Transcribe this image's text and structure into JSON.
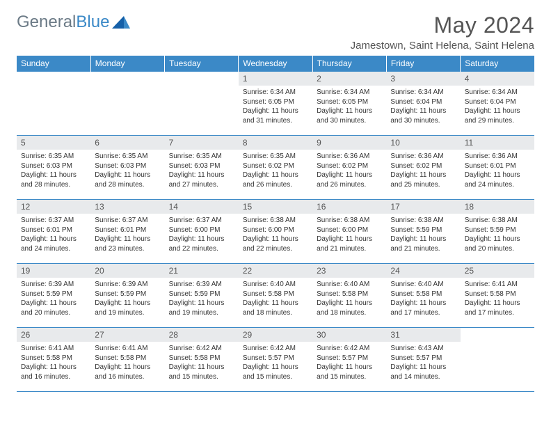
{
  "brand": {
    "part1": "General",
    "part2": "Blue"
  },
  "title": "May 2024",
  "location": "Jamestown, Saint Helena, Saint Helena",
  "colors": {
    "header_bg": "#3b89c7",
    "header_text": "#ffffff",
    "daynum_bg": "#e8eaec",
    "border": "#3b89c7",
    "text": "#333333",
    "logo_gray": "#6b7a86"
  },
  "weekdays": [
    "Sunday",
    "Monday",
    "Tuesday",
    "Wednesday",
    "Thursday",
    "Friday",
    "Saturday"
  ],
  "weeks": [
    [
      {
        "day": "",
        "sunrise": "",
        "sunset": "",
        "daylight": ""
      },
      {
        "day": "",
        "sunrise": "",
        "sunset": "",
        "daylight": ""
      },
      {
        "day": "",
        "sunrise": "",
        "sunset": "",
        "daylight": ""
      },
      {
        "day": "1",
        "sunrise": "Sunrise: 6:34 AM",
        "sunset": "Sunset: 6:05 PM",
        "daylight": "Daylight: 11 hours and 31 minutes."
      },
      {
        "day": "2",
        "sunrise": "Sunrise: 6:34 AM",
        "sunset": "Sunset: 6:05 PM",
        "daylight": "Daylight: 11 hours and 30 minutes."
      },
      {
        "day": "3",
        "sunrise": "Sunrise: 6:34 AM",
        "sunset": "Sunset: 6:04 PM",
        "daylight": "Daylight: 11 hours and 30 minutes."
      },
      {
        "day": "4",
        "sunrise": "Sunrise: 6:34 AM",
        "sunset": "Sunset: 6:04 PM",
        "daylight": "Daylight: 11 hours and 29 minutes."
      }
    ],
    [
      {
        "day": "5",
        "sunrise": "Sunrise: 6:35 AM",
        "sunset": "Sunset: 6:03 PM",
        "daylight": "Daylight: 11 hours and 28 minutes."
      },
      {
        "day": "6",
        "sunrise": "Sunrise: 6:35 AM",
        "sunset": "Sunset: 6:03 PM",
        "daylight": "Daylight: 11 hours and 28 minutes."
      },
      {
        "day": "7",
        "sunrise": "Sunrise: 6:35 AM",
        "sunset": "Sunset: 6:03 PM",
        "daylight": "Daylight: 11 hours and 27 minutes."
      },
      {
        "day": "8",
        "sunrise": "Sunrise: 6:35 AM",
        "sunset": "Sunset: 6:02 PM",
        "daylight": "Daylight: 11 hours and 26 minutes."
      },
      {
        "day": "9",
        "sunrise": "Sunrise: 6:36 AM",
        "sunset": "Sunset: 6:02 PM",
        "daylight": "Daylight: 11 hours and 26 minutes."
      },
      {
        "day": "10",
        "sunrise": "Sunrise: 6:36 AM",
        "sunset": "Sunset: 6:02 PM",
        "daylight": "Daylight: 11 hours and 25 minutes."
      },
      {
        "day": "11",
        "sunrise": "Sunrise: 6:36 AM",
        "sunset": "Sunset: 6:01 PM",
        "daylight": "Daylight: 11 hours and 24 minutes."
      }
    ],
    [
      {
        "day": "12",
        "sunrise": "Sunrise: 6:37 AM",
        "sunset": "Sunset: 6:01 PM",
        "daylight": "Daylight: 11 hours and 24 minutes."
      },
      {
        "day": "13",
        "sunrise": "Sunrise: 6:37 AM",
        "sunset": "Sunset: 6:01 PM",
        "daylight": "Daylight: 11 hours and 23 minutes."
      },
      {
        "day": "14",
        "sunrise": "Sunrise: 6:37 AM",
        "sunset": "Sunset: 6:00 PM",
        "daylight": "Daylight: 11 hours and 22 minutes."
      },
      {
        "day": "15",
        "sunrise": "Sunrise: 6:38 AM",
        "sunset": "Sunset: 6:00 PM",
        "daylight": "Daylight: 11 hours and 22 minutes."
      },
      {
        "day": "16",
        "sunrise": "Sunrise: 6:38 AM",
        "sunset": "Sunset: 6:00 PM",
        "daylight": "Daylight: 11 hours and 21 minutes."
      },
      {
        "day": "17",
        "sunrise": "Sunrise: 6:38 AM",
        "sunset": "Sunset: 5:59 PM",
        "daylight": "Daylight: 11 hours and 21 minutes."
      },
      {
        "day": "18",
        "sunrise": "Sunrise: 6:38 AM",
        "sunset": "Sunset: 5:59 PM",
        "daylight": "Daylight: 11 hours and 20 minutes."
      }
    ],
    [
      {
        "day": "19",
        "sunrise": "Sunrise: 6:39 AM",
        "sunset": "Sunset: 5:59 PM",
        "daylight": "Daylight: 11 hours and 20 minutes."
      },
      {
        "day": "20",
        "sunrise": "Sunrise: 6:39 AM",
        "sunset": "Sunset: 5:59 PM",
        "daylight": "Daylight: 11 hours and 19 minutes."
      },
      {
        "day": "21",
        "sunrise": "Sunrise: 6:39 AM",
        "sunset": "Sunset: 5:59 PM",
        "daylight": "Daylight: 11 hours and 19 minutes."
      },
      {
        "day": "22",
        "sunrise": "Sunrise: 6:40 AM",
        "sunset": "Sunset: 5:58 PM",
        "daylight": "Daylight: 11 hours and 18 minutes."
      },
      {
        "day": "23",
        "sunrise": "Sunrise: 6:40 AM",
        "sunset": "Sunset: 5:58 PM",
        "daylight": "Daylight: 11 hours and 18 minutes."
      },
      {
        "day": "24",
        "sunrise": "Sunrise: 6:40 AM",
        "sunset": "Sunset: 5:58 PM",
        "daylight": "Daylight: 11 hours and 17 minutes."
      },
      {
        "day": "25",
        "sunrise": "Sunrise: 6:41 AM",
        "sunset": "Sunset: 5:58 PM",
        "daylight": "Daylight: 11 hours and 17 minutes."
      }
    ],
    [
      {
        "day": "26",
        "sunrise": "Sunrise: 6:41 AM",
        "sunset": "Sunset: 5:58 PM",
        "daylight": "Daylight: 11 hours and 16 minutes."
      },
      {
        "day": "27",
        "sunrise": "Sunrise: 6:41 AM",
        "sunset": "Sunset: 5:58 PM",
        "daylight": "Daylight: 11 hours and 16 minutes."
      },
      {
        "day": "28",
        "sunrise": "Sunrise: 6:42 AM",
        "sunset": "Sunset: 5:58 PM",
        "daylight": "Daylight: 11 hours and 15 minutes."
      },
      {
        "day": "29",
        "sunrise": "Sunrise: 6:42 AM",
        "sunset": "Sunset: 5:57 PM",
        "daylight": "Daylight: 11 hours and 15 minutes."
      },
      {
        "day": "30",
        "sunrise": "Sunrise: 6:42 AM",
        "sunset": "Sunset: 5:57 PM",
        "daylight": "Daylight: 11 hours and 15 minutes."
      },
      {
        "day": "31",
        "sunrise": "Sunrise: 6:43 AM",
        "sunset": "Sunset: 5:57 PM",
        "daylight": "Daylight: 11 hours and 14 minutes."
      },
      {
        "day": "",
        "sunrise": "",
        "sunset": "",
        "daylight": ""
      }
    ]
  ]
}
